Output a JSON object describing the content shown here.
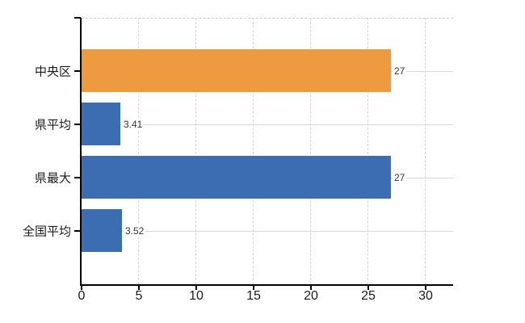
{
  "chart_data": {
    "type": "bar",
    "orientation": "horizontal",
    "categories": [
      "中央区",
      "県平均",
      "県最大",
      "全国平均"
    ],
    "values": [
      27,
      3.41,
      27,
      3.52
    ],
    "value_labels": [
      "27",
      "3.41",
      "27",
      "3.52"
    ],
    "series": [
      {
        "name": "中央区",
        "value": 27,
        "color": "#ED9A40"
      },
      {
        "name": "県平均",
        "value": 3.41,
        "color": "#3C6DB3"
      },
      {
        "name": "県最大",
        "value": 27,
        "color": "#3C6DB3"
      },
      {
        "name": "全国平均",
        "value": 3.52,
        "color": "#3C6DB3"
      }
    ],
    "x_ticks": [
      0,
      5,
      10,
      15,
      20,
      25,
      30
    ],
    "x_tick_labels": [
      "0",
      "5",
      "10",
      "15",
      "20",
      "25",
      "30"
    ],
    "xlim": [
      0,
      32.4
    ],
    "grid": true,
    "legend": false,
    "title": "",
    "colors": {
      "highlight_bar": "#ED9A40",
      "default_bar": "#3C6DB3",
      "axis": "#000000",
      "vertical_gridline": "#D4D4D4",
      "horizontal_gridline": "#D8D8D8",
      "top_boundary": "#C9C9C9",
      "category_text": "#1A1A1A",
      "value_text": "#333333",
      "background": "#FFFFFF"
    }
  }
}
